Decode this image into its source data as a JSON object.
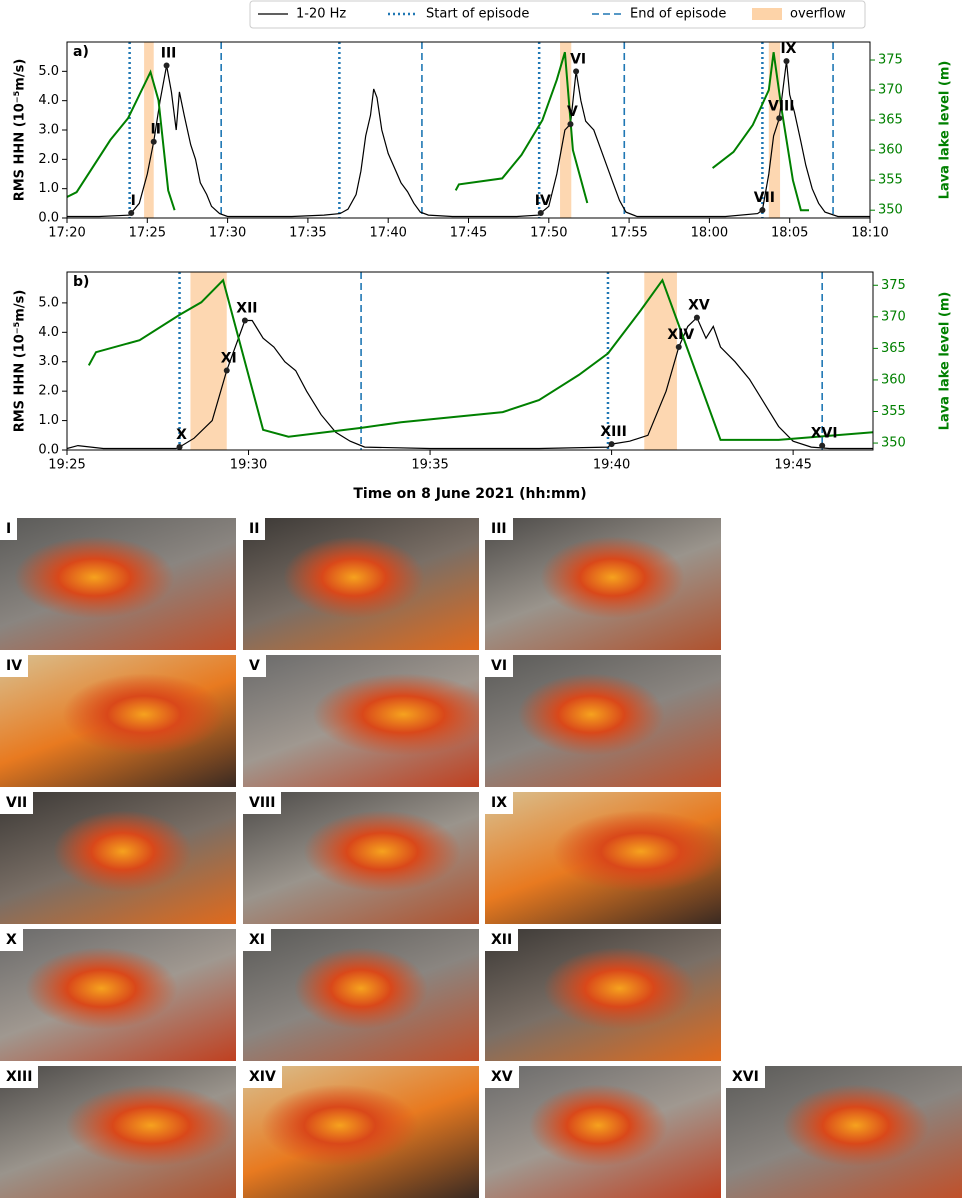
{
  "chart_data": [
    {
      "type": "line",
      "panel": "a)",
      "xlim": [
        1040,
        1090
      ],
      "ylim": [
        0,
        6.0
      ],
      "y2lim": [
        348.7,
        378
      ],
      "xticks": [
        {
          "value": 1040,
          "label": "17:20"
        },
        {
          "value": 1045,
          "label": "17:25"
        },
        {
          "value": 1050,
          "label": "17:30"
        },
        {
          "value": 1055,
          "label": "17:35"
        },
        {
          "value": 1060,
          "label": "17:40"
        },
        {
          "value": 1065,
          "label": "17:45"
        },
        {
          "value": 1070,
          "label": "17:50"
        },
        {
          "value": 1075,
          "label": "17:55"
        },
        {
          "value": 1080,
          "label": "18:00"
        },
        {
          "value": 1085,
          "label": "18:05"
        },
        {
          "value": 1090,
          "label": "18:10"
        }
      ],
      "yticks": [
        {
          "value": 0,
          "label": "0.0"
        },
        {
          "value": 1,
          "label": "1.0"
        },
        {
          "value": 2,
          "label": "2.0"
        },
        {
          "value": 3,
          "label": "3.0"
        },
        {
          "value": 4,
          "label": "4.0"
        },
        {
          "value": 5,
          "label": "5.0"
        }
      ],
      "y2ticks": [
        350,
        355,
        360,
        365,
        370,
        375
      ],
      "ylabel": "RMS HHN (10⁻⁵m/s)",
      "y2label": "Lava lake level (m)",
      "series": [
        {
          "name": "1-20 Hz",
          "color": "#000000",
          "x": [
            1040,
            1042,
            1043.9,
            1044,
            1044.5,
            1045,
            1045.4,
            1045.8,
            1046.2,
            1046.5,
            1046.8,
            1047,
            1047.3,
            1047.7,
            1048,
            1048.3,
            1048.7,
            1049,
            1049.5,
            1050,
            1052,
            1054,
            1056,
            1057,
            1057.5,
            1058,
            1058.3,
            1058.6,
            1058.9,
            1059.1,
            1059.3,
            1059.6,
            1060,
            1060.4,
            1060.8,
            1061.2,
            1061.6,
            1062,
            1062.5,
            1064,
            1066,
            1068,
            1069.4,
            1069.5,
            1070,
            1070.5,
            1071,
            1071.35,
            1071.7,
            1072,
            1072.3,
            1072.8,
            1073.2,
            1073.6,
            1074,
            1074.4,
            1074.8,
            1075.5,
            1078,
            1081,
            1083,
            1083.3,
            1083.7,
            1084,
            1084.35,
            1084.8,
            1085,
            1085.3,
            1085.7,
            1086,
            1086.4,
            1086.8,
            1087.2,
            1088,
            1090
          ],
          "values": [
            0.05,
            0.05,
            0.1,
            0.17,
            0.5,
            1.5,
            2.6,
            4.0,
            5.2,
            4.3,
            3.0,
            4.3,
            3.5,
            2.5,
            2.0,
            1.2,
            0.8,
            0.4,
            0.15,
            0.05,
            0.05,
            0.05,
            0.1,
            0.15,
            0.3,
            0.8,
            1.6,
            2.8,
            3.5,
            4.4,
            4.1,
            3.0,
            2.2,
            1.7,
            1.2,
            0.9,
            0.5,
            0.2,
            0.1,
            0.05,
            0.05,
            0.05,
            0.1,
            0.17,
            0.4,
            1.5,
            3.0,
            3.2,
            5.0,
            4.0,
            3.3,
            3.0,
            2.4,
            1.8,
            1.2,
            0.6,
            0.2,
            0.05,
            0.05,
            0.05,
            0.15,
            0.27,
            1.5,
            2.8,
            3.4,
            5.35,
            4.2,
            3.6,
            2.6,
            1.8,
            1.0,
            0.5,
            0.2,
            0.05,
            0.05
          ]
        },
        {
          "color": "#008000",
          "axis": "y2",
          "x": [
            1040,
            1040.6,
            1042.7,
            1043.8,
            1045.2,
            1045.7,
            1046.3,
            1046.7,
            1055,
            1064.2,
            1064.4,
            1067.1,
            1068.3,
            1069.6,
            1070.5,
            1071.0,
            1071.5,
            1072.4,
            1076,
            1080.2,
            1081.5,
            1082.7,
            1083.7,
            1084.0,
            1084.5,
            1085.2,
            1085.7,
            1086.2
          ],
          "values": [
            352.2,
            353.0,
            361.7,
            365.3,
            373.0,
            368.3,
            353.3,
            350,
            null,
            353.3,
            354.3,
            355.3,
            359.2,
            365,
            371.7,
            376.3,
            360,
            351.2,
            null,
            357,
            359.7,
            364.2,
            370,
            376.3,
            366.7,
            355,
            350,
            350
          ]
        }
      ],
      "start_episode": {
        "name": "Start of episode",
        "color": "#1f77b4",
        "x": [
          1043.9,
          1056.96,
          1069.4,
          1083.3
        ]
      },
      "end_episode": {
        "name": "End of episode",
        "color": "#1f77b4",
        "x": [
          1049.6,
          1062.1,
          1074.7,
          1087.7
        ]
      },
      "overflow": {
        "name": "overflow",
        "color": "#fdd3a8",
        "spans": [
          [
            1044.8,
            1045.4
          ],
          [
            1070.7,
            1071.4
          ],
          [
            1083.7,
            1084.4
          ]
        ]
      },
      "annotations": [
        {
          "label": "I",
          "x": 1044.0,
          "y": 0.17
        },
        {
          "label": "II",
          "x": 1045.4,
          "y": 2.6
        },
        {
          "label": "III",
          "x": 1046.2,
          "y": 5.2
        },
        {
          "label": "IV",
          "x": 1069.5,
          "y": 0.17
        },
        {
          "label": "V",
          "x": 1071.35,
          "y": 3.2
        },
        {
          "label": "VI",
          "x": 1071.7,
          "y": 5.0
        },
        {
          "label": "VII",
          "x": 1083.3,
          "y": 0.27
        },
        {
          "label": "VIII",
          "x": 1084.35,
          "y": 3.4
        },
        {
          "label": "IX",
          "x": 1084.8,
          "y": 5.35
        }
      ]
    },
    {
      "type": "line",
      "panel": "b)",
      "xlim": [
        1165,
        1187.2
      ],
      "ylim": [
        0,
        6.05
      ],
      "y2lim": [
        348.9,
        377.1
      ],
      "xticks": [
        {
          "value": 1165,
          "label": "19:25"
        },
        {
          "value": 1170,
          "label": "19:30"
        },
        {
          "value": 1175,
          "label": "19:35"
        },
        {
          "value": 1180,
          "label": "19:40"
        },
        {
          "value": 1185,
          "label": "19:45"
        }
      ],
      "yticks": [
        {
          "value": 0,
          "label": "0.0"
        },
        {
          "value": 1,
          "label": "1.0"
        },
        {
          "value": 2,
          "label": "2.0"
        },
        {
          "value": 3,
          "label": "3.0"
        },
        {
          "value": 4,
          "label": "4.0"
        },
        {
          "value": 5,
          "label": "5.0"
        }
      ],
      "y2ticks": [
        350,
        355,
        360,
        365,
        370,
        375
      ],
      "ylabel": "RMS HHN (10⁻⁵m/s)",
      "y2label": "Lava lake level (m)",
      "xlabel": "Time on 8 June 2021 (hh:mm)",
      "series": [
        {
          "color": "#000000",
          "x": [
            1165,
            1165.3,
            1166,
            1168,
            1168.1,
            1168.5,
            1169,
            1169.4,
            1169.9,
            1170.1,
            1170.4,
            1170.7,
            1171,
            1171.3,
            1171.6,
            1172,
            1172.4,
            1172.8,
            1173.2,
            1175,
            1178,
            1179.9,
            1180,
            1180.5,
            1181,
            1181.5,
            1181.85,
            1182.1,
            1182.35,
            1182.6,
            1182.8,
            1183,
            1183.4,
            1183.8,
            1184.2,
            1184.6,
            1185,
            1185.5,
            1186,
            1187.2
          ],
          "values": [
            0.05,
            0.15,
            0.05,
            0.05,
            0.1,
            0.4,
            1.0,
            2.7,
            4.4,
            4.4,
            3.8,
            3.5,
            3.0,
            2.7,
            2.0,
            1.2,
            0.6,
            0.3,
            0.1,
            0.05,
            0.05,
            0.1,
            0.2,
            0.3,
            0.5,
            2.0,
            3.5,
            4.2,
            4.5,
            3.8,
            4.2,
            3.5,
            3.0,
            2.4,
            1.6,
            0.8,
            0.3,
            0.1,
            0.05,
            0.05
          ]
        },
        {
          "color": "#008000",
          "axis": "y2",
          "x": [
            1165.6,
            1165.8,
            1167.0,
            1168.1,
            1168.7,
            1169.3,
            1170.4,
            1171.1,
            1173.1,
            1174.2,
            1177.0,
            1178.0,
            1179.1,
            1179.9,
            1180.8,
            1181.4,
            1181.9,
            1183.0,
            1184.6,
            1187.2
          ],
          "values": [
            362.3,
            364.4,
            366.3,
            370.3,
            372.3,
            375.8,
            352.1,
            351.0,
            352.4,
            353.3,
            354.9,
            356.8,
            360.8,
            364.2,
            371.0,
            375.8,
            367.9,
            350.5,
            350.5,
            351.7
          ]
        }
      ],
      "start_episode": {
        "color": "#1f77b4",
        "x": [
          1168.1,
          1179.9
        ]
      },
      "end_episode": {
        "color": "#1f77b4",
        "x": [
          1173.1,
          1185.8
        ]
      },
      "overflow": {
        "color": "#fdd3a8",
        "spans": [
          [
            1168.4,
            1169.4
          ],
          [
            1180.9,
            1181.8
          ]
        ]
      },
      "annotations": [
        {
          "label": "X",
          "x": 1168.1,
          "y": 0.1
        },
        {
          "label": "XI",
          "x": 1169.4,
          "y": 2.7
        },
        {
          "label": "XII",
          "x": 1169.9,
          "y": 4.4
        },
        {
          "label": "XIII",
          "x": 1180.0,
          "y": 0.2
        },
        {
          "label": "XIV",
          "x": 1181.85,
          "y": 3.5
        },
        {
          "label": "XV",
          "x": 1182.35,
          "y": 4.5
        },
        {
          "label": "XVI",
          "x": 1185.8,
          "y": 0.15
        }
      ]
    }
  ],
  "photos": [
    {
      "label": "I"
    },
    {
      "label": "II"
    },
    {
      "label": "III"
    },
    {
      "label": "IV"
    },
    {
      "label": "V"
    },
    {
      "label": "VI"
    },
    {
      "label": "VII"
    },
    {
      "label": "VIII"
    },
    {
      "label": "IX"
    },
    {
      "label": "X"
    },
    {
      "label": "XI"
    },
    {
      "label": "XII"
    },
    {
      "label": "XIII"
    },
    {
      "label": "XIV"
    },
    {
      "label": "XV"
    },
    {
      "label": "XVI"
    }
  ]
}
